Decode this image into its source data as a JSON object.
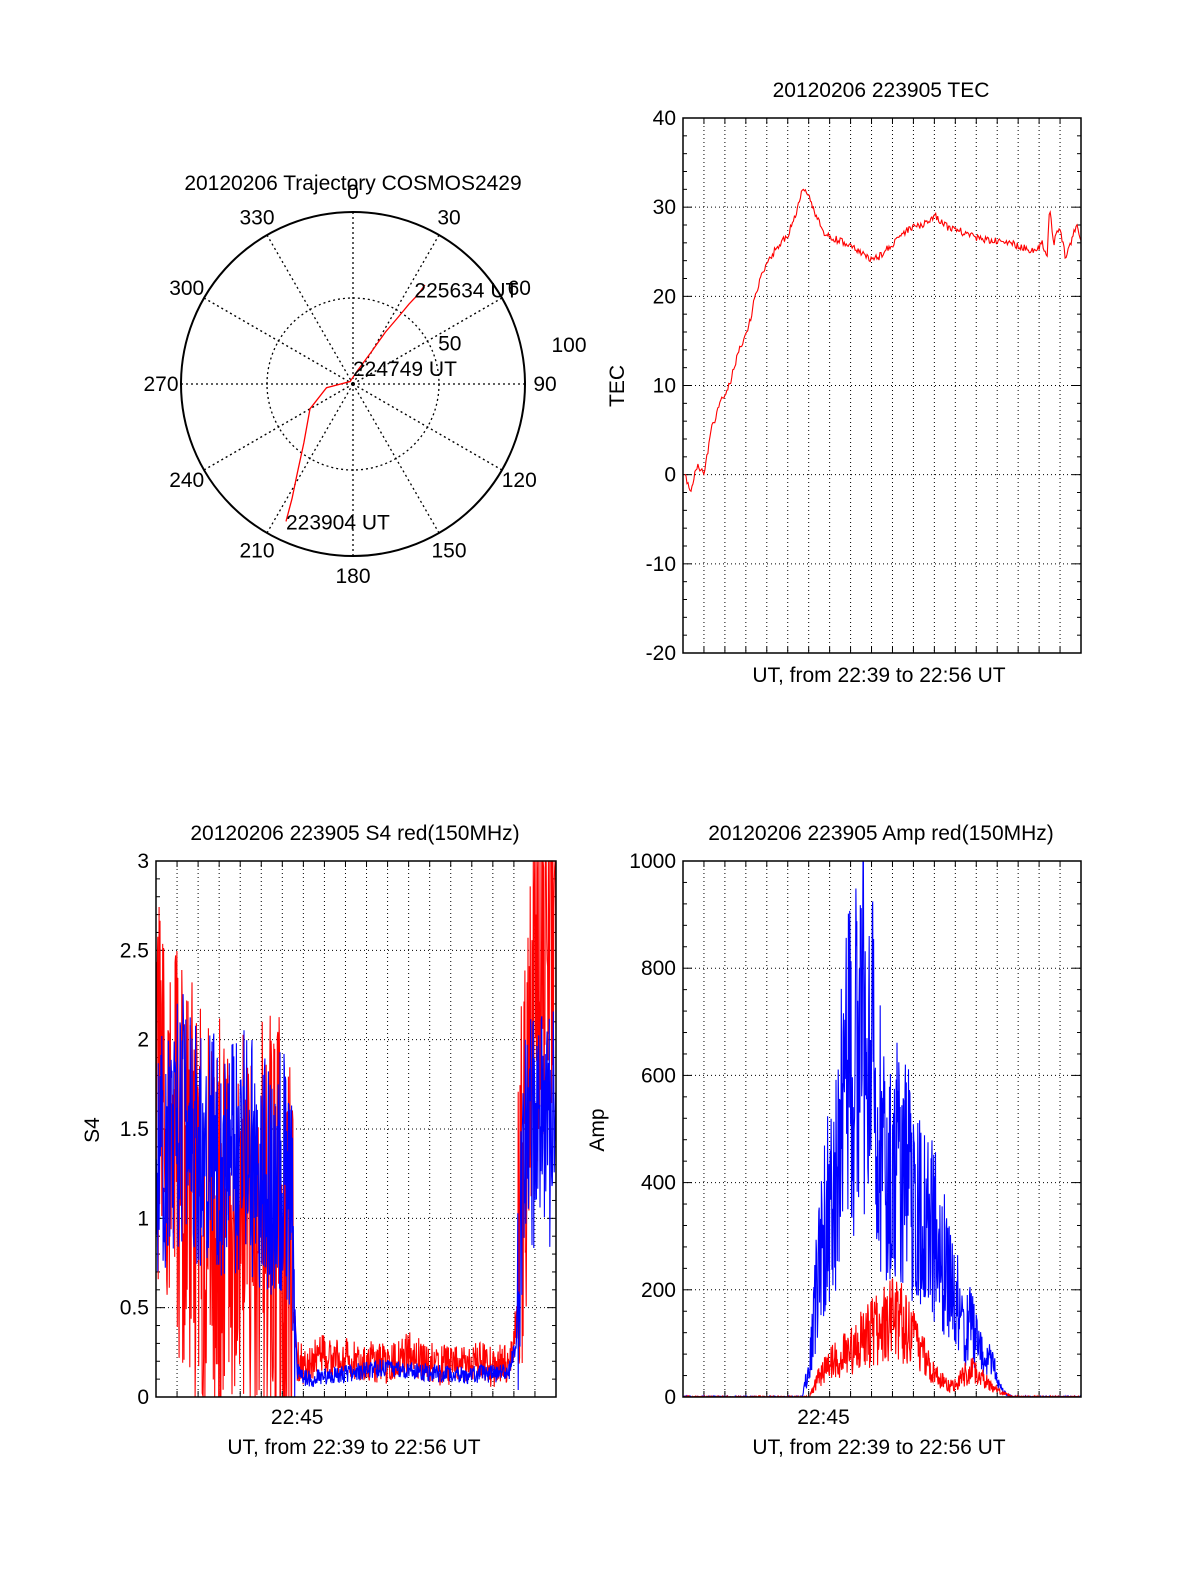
{
  "colors": {
    "red": "#ff0000",
    "blue": "#0000ff",
    "axis": "#000000",
    "grid": "#000000"
  },
  "chart_data": [
    {
      "type": "polar",
      "title": "20120206 Trajectory COSMOS2429",
      "azimuth_labels": [
        "0",
        "30",
        "60",
        "90",
        "120",
        "150",
        "180",
        "210",
        "240",
        "270",
        "300",
        "330"
      ],
      "elevation_rings": [
        0,
        50,
        100
      ],
      "ring_labels": [
        "50",
        "100"
      ],
      "grid": true,
      "series": [
        {
          "color": "red",
          "points": [
            [
              206,
              10
            ],
            [
              208,
              22
            ],
            [
              212,
              35
            ],
            [
              220,
              50
            ],
            [
              240,
              64
            ],
            [
              262,
              76
            ],
            [
              310,
              88
            ],
            [
              20,
              82
            ],
            [
              30,
              70
            ],
            [
              32,
              58
            ],
            [
              34,
              48
            ],
            [
              35,
              39
            ],
            [
              36,
              32
            ],
            [
              36,
              26
            ]
          ]
        }
      ],
      "annotations": [
        {
          "text": "225634 UT",
          "az": 33,
          "el": 31
        },
        {
          "text": "224749 UT",
          "az": 0,
          "el": 90
        },
        {
          "text": "223904 UT",
          "az": 206,
          "el": 10
        }
      ]
    },
    {
      "type": "line",
      "title": "20120206 223905 TEC",
      "xlabel": "UT, from 22:39 to 22:56 UT",
      "ylabel": "TEC",
      "xlim": [
        22.65,
        22.9333
      ],
      "ylim": [
        -20,
        40
      ],
      "yticks": [
        "40",
        "30",
        "20",
        "10",
        "0",
        "-10",
        "-20"
      ],
      "grid": true,
      "series": [
        {
          "color": "red",
          "x": [
            22.6514,
            22.655,
            22.66,
            22.665,
            22.67,
            22.6767,
            22.683,
            22.69,
            22.696,
            22.7,
            22.705,
            22.71,
            22.715,
            22.72,
            22.725,
            22.73,
            22.735,
            22.74,
            22.745,
            22.75,
            22.757,
            22.765,
            22.775,
            22.785,
            22.79,
            22.8,
            22.81,
            22.82,
            22.83,
            22.84,
            22.846,
            22.852,
            22.858,
            22.865,
            22.872,
            22.879,
            22.886,
            22.893,
            22.9,
            22.906,
            22.909,
            22.911,
            22.914,
            22.918,
            22.922,
            22.926,
            22.93,
            22.9333
          ],
          "y": [
            0,
            -2,
            1,
            0,
            5,
            8,
            10,
            14,
            16,
            19,
            22,
            24,
            25,
            26,
            27,
            29,
            32,
            31,
            29,
            27,
            26.5,
            26,
            25,
            24,
            24.5,
            26,
            27.5,
            28,
            29,
            27.5,
            27.4,
            27,
            26.6,
            26.4,
            26.2,
            26,
            25.8,
            25.5,
            25,
            26,
            24,
            30,
            26,
            28,
            24.5,
            26,
            28,
            26
          ]
        }
      ]
    },
    {
      "type": "line",
      "title": "20120206 223905 S4 red(150MHz)",
      "xlabel": "UT, from 22:39 to 22:56 UT",
      "ylabel": "S4",
      "xlim": [
        22.65,
        22.9333
      ],
      "ylim": [
        0,
        3
      ],
      "yticks": [
        "3",
        "2.5",
        "2",
        "1.5",
        "1",
        "0.5",
        "0"
      ],
      "xtick_labels": [
        {
          "x": 22.75,
          "label": "22:45"
        }
      ],
      "grid": true,
      "series": [
        {
          "name": "",
          "color": "red",
          "x": [
            22.65,
            22.66,
            22.67,
            22.68,
            22.69,
            22.7,
            22.71,
            22.72,
            22.73,
            22.74,
            22.745,
            22.75,
            22.755,
            22.76,
            22.77,
            22.78,
            22.79,
            22.8,
            22.81,
            22.82,
            22.83,
            22.84,
            22.85,
            22.86,
            22.87,
            22.88,
            22.89,
            22.9,
            22.905,
            22.91,
            22.92,
            22.93,
            22.9333
          ],
          "y": [
            1.6,
            1.5,
            1.2,
            1.1,
            0.9,
            1.0,
            1.1,
            0.8,
            1.0,
            0.9,
            0.7,
            0.2,
            0.18,
            0.2,
            0.25,
            0.2,
            0.22,
            0.2,
            0.18,
            0.22,
            0.25,
            0.2,
            0.18,
            0.19,
            0.17,
            0.2,
            0.16,
            0.2,
            0.4,
            1.4,
            2.5,
            2.8,
            2.9
          ]
        },
        {
          "name": "",
          "color": "blue",
          "x": [
            22.65,
            22.66,
            22.67,
            22.68,
            22.69,
            22.7,
            22.71,
            22.72,
            22.73,
            22.74,
            22.745,
            22.75,
            22.755,
            22.76,
            22.77,
            22.78,
            22.79,
            22.8,
            22.81,
            22.82,
            22.83,
            22.84,
            22.85,
            22.86,
            22.87,
            22.88,
            22.89,
            22.9,
            22.905,
            22.91,
            22.92,
            22.93,
            22.9333
          ],
          "y": [
            1.3,
            1.4,
            1.6,
            1.4,
            1.5,
            1.3,
            1.4,
            1.3,
            1.2,
            1.3,
            1.2,
            0.15,
            0.1,
            0.1,
            0.12,
            0.12,
            0.14,
            0.15,
            0.16,
            0.15,
            0.15,
            0.14,
            0.13,
            0.13,
            0.12,
            0.13,
            0.13,
            0.14,
            0.3,
            1.3,
            1.6,
            1.5,
            1.5
          ]
        }
      ]
    },
    {
      "type": "line",
      "title": "20120206 223905 Amp red(150MHz)",
      "xlabel": "UT, from 22:39 to 22:56 UT",
      "ylabel": "Amp",
      "xlim": [
        22.65,
        22.9333
      ],
      "ylim": [
        0,
        1000
      ],
      "yticks": [
        "1000",
        "800",
        "600",
        "400",
        "200",
        "0"
      ],
      "xtick_labels": [
        {
          "x": 22.75,
          "label": "22:45"
        }
      ],
      "grid": true,
      "series": [
        {
          "name": "",
          "color": "blue",
          "x": [
            22.65,
            22.7,
            22.735,
            22.74,
            22.745,
            22.75,
            22.755,
            22.76,
            22.765,
            22.77,
            22.775,
            22.78,
            22.785,
            22.79,
            22.795,
            22.8,
            22.805,
            22.81,
            22.815,
            22.82,
            22.825,
            22.83,
            22.835,
            22.84,
            22.845,
            22.85,
            22.855,
            22.86,
            22.865,
            22.87,
            22.875,
            22.88,
            22.885,
            22.9333
          ],
          "y": [
            0,
            0,
            0,
            60,
            200,
            300,
            380,
            450,
            560,
            640,
            720,
            680,
            600,
            520,
            460,
            440,
            420,
            400,
            380,
            360,
            330,
            300,
            260,
            220,
            180,
            120,
            140,
            100,
            60,
            70,
            20,
            5,
            0,
            0
          ]
        },
        {
          "name": "",
          "color": "red",
          "x": [
            22.65,
            22.74,
            22.745,
            22.75,
            22.755,
            22.76,
            22.765,
            22.77,
            22.775,
            22.78,
            22.785,
            22.79,
            22.795,
            22.8,
            22.805,
            22.81,
            22.815,
            22.82,
            22.825,
            22.83,
            22.835,
            22.84,
            22.845,
            22.85,
            22.855,
            22.86,
            22.865,
            22.87,
            22.875,
            22.88,
            22.885,
            22.9333
          ],
          "y": [
            0,
            0,
            30,
            50,
            60,
            70,
            80,
            90,
            100,
            110,
            120,
            130,
            140,
            150,
            140,
            120,
            100,
            80,
            60,
            40,
            30,
            20,
            25,
            40,
            50,
            45,
            30,
            20,
            10,
            5,
            0,
            0
          ]
        }
      ]
    }
  ]
}
